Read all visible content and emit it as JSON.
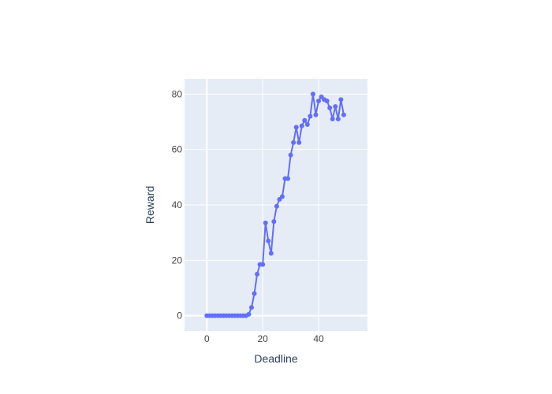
{
  "chart_data": {
    "type": "line",
    "mode": "lines+markers",
    "xlabel": "Deadline",
    "ylabel": "Reward",
    "xlim": [
      -8,
      57.5
    ],
    "ylim": [
      -5.5,
      85.5
    ],
    "xticks": [
      0,
      20,
      40
    ],
    "yticks": [
      0,
      20,
      40,
      60,
      80
    ],
    "grid": true,
    "line_color": "#636efa",
    "plot_bg": "#e5ecf6",
    "series": [
      {
        "x": [
          0,
          1,
          2,
          3,
          4,
          5,
          6,
          7,
          8,
          9,
          10,
          11,
          12,
          13,
          14,
          15,
          16,
          17,
          18,
          19,
          20,
          21,
          22,
          23,
          24,
          25,
          26,
          27,
          28,
          29,
          30,
          31,
          32,
          33,
          34,
          35,
          36,
          37,
          38,
          39,
          40,
          41,
          42,
          43,
          44,
          45,
          46,
          47,
          48,
          49
        ],
        "values": [
          0,
          0,
          0,
          0,
          0,
          0,
          0,
          0,
          0,
          0,
          0,
          0,
          0,
          0,
          0,
          0.5,
          3,
          8,
          15,
          18.5,
          18.5,
          33.5,
          27,
          22.5,
          34,
          39.5,
          42,
          43,
          49.5,
          49.5,
          58,
          62.5,
          68,
          62.5,
          68.5,
          70.5,
          69,
          72,
          80,
          72.5,
          77.5,
          79,
          78,
          77.5,
          75,
          71,
          75.5,
          71,
          78,
          72.5
        ]
      }
    ]
  }
}
